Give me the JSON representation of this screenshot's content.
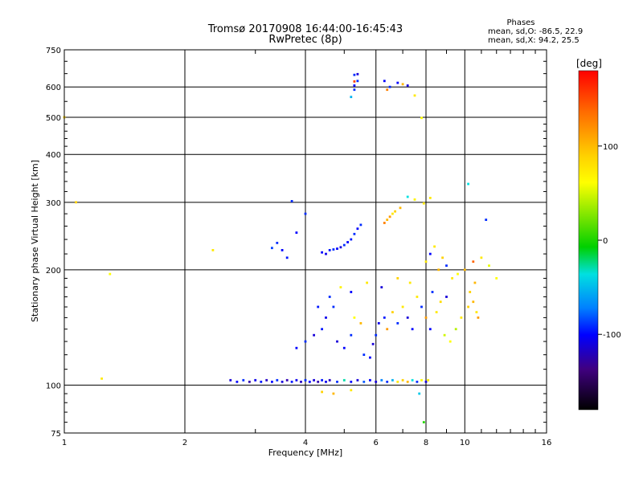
{
  "chart_data": {
    "type": "scatter",
    "title": "Tromsø 20170908 16:44:00-16:45:43",
    "subtitle": "RwPretec (8p)",
    "xlabel": "Frequency [MHz]",
    "ylabel": "Stationary phase Virtual Height [km]",
    "xscale": "log",
    "yscale": "log",
    "xlim": [
      1,
      16
    ],
    "ylim": [
      75,
      750
    ],
    "xticks": [
      1,
      2,
      4,
      6,
      8,
      10,
      16
    ],
    "xtick_labels": [
      "1",
      "2",
      "4",
      "6",
      "8",
      "10",
      "16"
    ],
    "yticks": [
      75,
      100,
      200,
      300,
      400,
      500,
      600,
      750
    ],
    "ytick_labels": [
      "75",
      "100",
      "200",
      "300",
      "400",
      "500",
      "600",
      "750"
    ],
    "grid": true,
    "phases": {
      "heading": "Phases",
      "line_o": "mean, sd,O: -86.5, 22.9",
      "line_x": "mean, sd,X:  94.2, 25.5"
    },
    "colorbar": {
      "label": "[deg]",
      "ticks": [
        100,
        0,
        -100
      ],
      "tick_labels": [
        "100",
        "0",
        "-100"
      ],
      "range": [
        -180,
        180
      ]
    },
    "series": [
      {
        "name": "Echoes",
        "points": [
          [
            2.6,
            103,
            -120
          ],
          [
            2.7,
            102,
            -110
          ],
          [
            2.8,
            103,
            -100
          ],
          [
            2.9,
            102,
            -130
          ],
          [
            3.0,
            103,
            -115
          ],
          [
            3.1,
            102,
            -105
          ],
          [
            3.2,
            103,
            -125
          ],
          [
            3.3,
            102,
            -110
          ],
          [
            3.4,
            103,
            -100
          ],
          [
            3.5,
            102,
            -120
          ],
          [
            3.6,
            103,
            -130
          ],
          [
            3.7,
            102,
            -105
          ],
          [
            3.8,
            103,
            -115
          ],
          [
            3.9,
            102,
            -125
          ],
          [
            4.0,
            103,
            -100
          ],
          [
            4.1,
            102,
            -110
          ],
          [
            4.2,
            103,
            -120
          ],
          [
            4.3,
            102,
            -130
          ],
          [
            4.4,
            103,
            -105
          ],
          [
            4.5,
            102,
            -115
          ],
          [
            4.6,
            103,
            -125
          ],
          [
            4.8,
            102,
            -100
          ],
          [
            5.0,
            103,
            -30
          ],
          [
            5.2,
            102,
            -110
          ],
          [
            5.4,
            103,
            -120
          ],
          [
            5.6,
            102,
            -90
          ],
          [
            5.8,
            103,
            -110
          ],
          [
            6.0,
            102,
            -120
          ],
          [
            6.2,
            103,
            -80
          ],
          [
            6.4,
            102,
            -100
          ],
          [
            6.6,
            103,
            -60
          ],
          [
            6.8,
            102,
            100
          ],
          [
            7.0,
            103,
            110
          ],
          [
            7.2,
            102,
            120
          ],
          [
            7.4,
            103,
            -40
          ],
          [
            7.6,
            102,
            -100
          ],
          [
            7.8,
            103,
            90
          ],
          [
            8.0,
            102,
            -120
          ],
          [
            8.1,
            103,
            100
          ],
          [
            4.4,
            96,
            110
          ],
          [
            4.7,
            95,
            120
          ],
          [
            5.2,
            97,
            100
          ],
          [
            7.7,
            95,
            -50
          ],
          [
            7.9,
            80,
            10
          ],
          [
            3.8,
            125,
            -110
          ],
          [
            4.0,
            130,
            -100
          ],
          [
            4.2,
            135,
            -120
          ],
          [
            4.4,
            140,
            -105
          ],
          [
            4.5,
            150,
            -115
          ],
          [
            4.7,
            160,
            -100
          ],
          [
            4.8,
            130,
            -120
          ],
          [
            5.0,
            125,
            -110
          ],
          [
            5.2,
            135,
            -100
          ],
          [
            5.3,
            150,
            90
          ],
          [
            5.5,
            145,
            120
          ],
          [
            5.6,
            120,
            -100
          ],
          [
            5.8,
            118,
            -110
          ],
          [
            5.9,
            128,
            -120
          ],
          [
            6.0,
            135,
            -100
          ],
          [
            6.1,
            145,
            -115
          ],
          [
            6.3,
            150,
            -105
          ],
          [
            6.4,
            140,
            130
          ],
          [
            6.6,
            155,
            110
          ],
          [
            6.8,
            145,
            -100
          ],
          [
            7.0,
            160,
            100
          ],
          [
            7.2,
            150,
            -120
          ],
          [
            7.4,
            140,
            -110
          ],
          [
            7.6,
            170,
            100
          ],
          [
            7.8,
            160,
            -100
          ],
          [
            8.0,
            150,
            130
          ],
          [
            8.2,
            140,
            -110
          ],
          [
            8.5,
            155,
            100
          ],
          [
            8.7,
            165,
            105
          ],
          [
            8.9,
            135,
            70
          ],
          [
            9.2,
            130,
            90
          ],
          [
            9.5,
            140,
            60
          ],
          [
            9.8,
            150,
            100
          ],
          [
            10.2,
            160,
            110
          ],
          [
            10.5,
            165,
            120
          ],
          [
            10.7,
            155,
            100
          ],
          [
            10.3,
            175,
            110
          ],
          [
            10.6,
            185,
            120
          ],
          [
            10.8,
            150,
            130
          ],
          [
            9.0,
            170,
            -120
          ],
          [
            8.3,
            175,
            -100
          ],
          [
            7.3,
            185,
            100
          ],
          [
            6.8,
            190,
            110
          ],
          [
            6.2,
            180,
            -120
          ],
          [
            5.7,
            185,
            100
          ],
          [
            5.2,
            175,
            -110
          ],
          [
            4.9,
            180,
            95
          ],
          [
            4.6,
            170,
            -100
          ],
          [
            4.3,
            160,
            -105
          ],
          [
            3.4,
            235,
            -100
          ],
          [
            3.5,
            225,
            -110
          ],
          [
            3.6,
            215,
            -105
          ],
          [
            3.3,
            228,
            -95
          ],
          [
            4.4,
            222,
            -110
          ],
          [
            4.5,
            220,
            -115
          ],
          [
            4.6,
            225,
            -105
          ],
          [
            4.7,
            226,
            -100
          ],
          [
            4.8,
            227,
            -110
          ],
          [
            4.9,
            229,
            -120
          ],
          [
            5.0,
            232,
            -100
          ],
          [
            5.1,
            236,
            -110
          ],
          [
            5.2,
            240,
            -105
          ],
          [
            5.3,
            248,
            -100
          ],
          [
            5.4,
            256,
            -110
          ],
          [
            5.5,
            262,
            -100
          ],
          [
            6.3,
            265,
            140
          ],
          [
            6.4,
            270,
            120
          ],
          [
            6.5,
            275,
            130
          ],
          [
            6.6,
            280,
            100
          ],
          [
            6.7,
            284,
            110
          ],
          [
            6.9,
            290,
            120
          ],
          [
            7.2,
            310,
            -40
          ],
          [
            7.5,
            305,
            95
          ],
          [
            7.9,
            298,
            100
          ],
          [
            8.2,
            308,
            100
          ],
          [
            3.8,
            250,
            -110
          ],
          [
            4.0,
            280,
            -100
          ],
          [
            3.7,
            302,
            -100
          ],
          [
            8.0,
            210,
            100
          ],
          [
            8.2,
            220,
            -110
          ],
          [
            8.4,
            230,
            100
          ],
          [
            8.6,
            200,
            120
          ],
          [
            8.8,
            215,
            110
          ],
          [
            9.0,
            205,
            -100
          ],
          [
            9.3,
            190,
            100
          ],
          [
            9.6,
            195,
            90
          ],
          [
            10.0,
            200,
            120
          ],
          [
            10.5,
            210,
            150
          ],
          [
            11.0,
            215,
            100
          ],
          [
            11.5,
            205,
            80
          ],
          [
            12.0,
            190,
            90
          ],
          [
            10.2,
            335,
            -40
          ],
          [
            11.3,
            270,
            -100
          ],
          [
            5.3,
            645,
            -100
          ],
          [
            5.4,
            648,
            -120
          ],
          [
            5.3,
            620,
            160
          ],
          [
            5.4,
            622,
            -100
          ],
          [
            5.3,
            605,
            -110
          ],
          [
            5.2,
            565,
            -60
          ],
          [
            5.3,
            590,
            -100
          ],
          [
            6.3,
            622,
            -110
          ],
          [
            6.4,
            590,
            140
          ],
          [
            6.5,
            600,
            -100
          ],
          [
            6.8,
            615,
            -110
          ],
          [
            7.0,
            610,
            120
          ],
          [
            7.2,
            605,
            -120
          ],
          [
            7.5,
            570,
            100
          ],
          [
            7.8,
            498,
            90
          ],
          [
            1.0,
            500,
            110
          ],
          [
            1.07,
            300,
            110
          ],
          [
            1.3,
            195,
            90
          ],
          [
            1.24,
            104,
            100
          ],
          [
            2.35,
            225,
            100
          ]
        ]
      }
    ]
  }
}
